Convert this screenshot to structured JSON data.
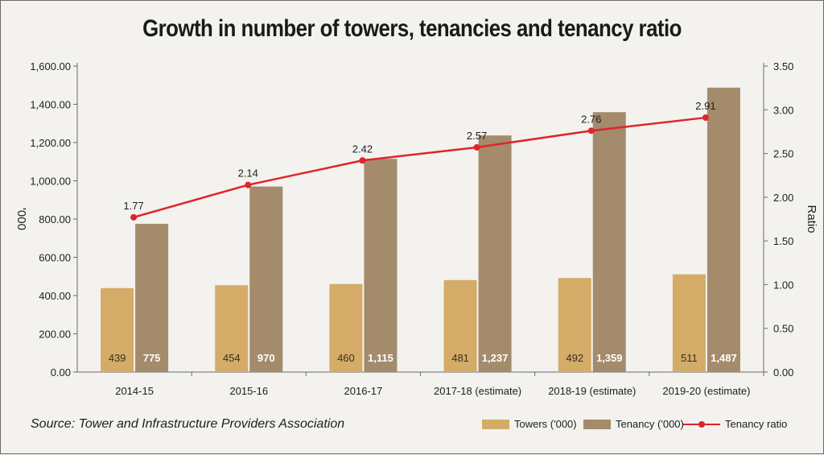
{
  "colors": {
    "towers": "#d4ac68",
    "tenancy": "#a48b6c",
    "ratio": "#e0242a"
  },
  "chart_data": {
    "type": "bar",
    "title": "Growth in number of towers, tenancies and tenancy ratio",
    "categories": [
      "2014-15",
      "2015-16",
      "2016-17",
      "2017-18 (estimate)",
      "2018-19 (estimate)",
      "2019-20 (estimate)"
    ],
    "series": [
      {
        "name": "Towers ('000)",
        "type": "bar",
        "axis": "left",
        "values": [
          439,
          454,
          460,
          481,
          492,
          511
        ],
        "labels": [
          "439",
          "454",
          "460",
          "481",
          "492",
          "511"
        ]
      },
      {
        "name": "Tenancy ('000)",
        "type": "bar",
        "axis": "left",
        "values": [
          775,
          970,
          1115,
          1237,
          1359,
          1487
        ],
        "labels": [
          "775",
          "970",
          "1,115",
          "1,237",
          "1,359",
          "1,487"
        ]
      },
      {
        "name": "Tenancy ratio",
        "type": "line",
        "axis": "right",
        "values": [
          1.77,
          2.14,
          2.42,
          2.57,
          2.76,
          2.91
        ],
        "labels": [
          "1.77",
          "2.14",
          "2.42",
          "2.57",
          "2.76",
          "2.91"
        ]
      }
    ],
    "ylabel": "'000",
    "ylim": [
      0,
      1600
    ],
    "yticks": [
      "0.00",
      "200.00",
      "400.00",
      "600.00",
      "800.00",
      "1,000.00",
      "1,200.00",
      "1,400.00",
      "1,600.00"
    ],
    "y2label": "Ratio",
    "y2lim": [
      0,
      3.5
    ],
    "y2ticks": [
      "0.00",
      "0.50",
      "1.00",
      "1.50",
      "2.00",
      "2.50",
      "3.00",
      "3.50"
    ],
    "grid": false,
    "legend": "bottom-right"
  },
  "source": "Source: Tower and Infrastructure Providers Association",
  "legend": {
    "towers": "Towers ('000)",
    "tenancy": "Tenancy ('000)",
    "ratio": "Tenancy ratio"
  }
}
